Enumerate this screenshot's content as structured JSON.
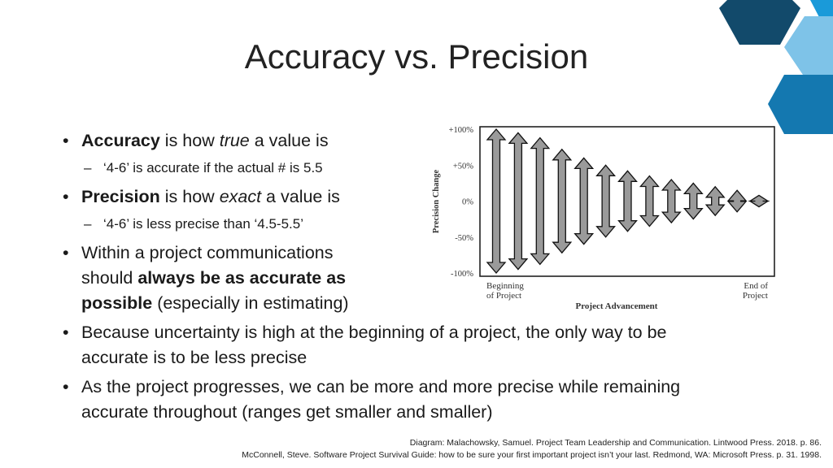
{
  "slide": {
    "title": "Accuracy vs. Precision",
    "bullets": {
      "b1": {
        "bold": "Accuracy",
        "text1": " is how ",
        "italic": "true",
        "text2": " a value is"
      },
      "s1": "‘4-6’ is accurate if the actual # is 5.5",
      "b2": {
        "bold": "Precision",
        "text1": " is how ",
        "italic": "exact",
        "text2": " a value is"
      },
      "s2": "‘4-6’ is less precise than ‘4.5-5.5’",
      "b3": {
        "line1": "Within a project communications",
        "line2a": "should ",
        "line2b": "always be as accurate as",
        "line3a": "possible",
        "line3b": " (especially in estimating)"
      },
      "b4": {
        "line1": "Because uncertainty is high at the beginning of a project, the only way to be",
        "line2": "accurate is to be less precise"
      },
      "b5": {
        "line1": "As the project progresses, we can be more and more precise while remaining",
        "line2": "accurate throughout (ranges get smaller and smaller)"
      },
      "bullet_glyph": "•",
      "dash_glyph": "–"
    },
    "credits": {
      "line1": "Diagram: Malachowsky, Samuel. Project Team Leadership and Communication. Lintwood Press. 2018. p. 86.",
      "line2": "McConnell, Steve. Software Project Survival Guide: how to be sure your first important project isn’t your last. Redmond, WA: Microsoft Press. p. 31. 1998."
    },
    "colors": {
      "deco_dark": "#124a6b",
      "deco_mid": "#1478b0",
      "deco_light": "#7ec3e8",
      "deco_bright": "#1a9ad9"
    }
  },
  "chart_data": {
    "type": "range-arrows",
    "ylabel": "Precision Change",
    "xlabel": "Project Advancement",
    "yticks": [
      "+100%",
      "+50%",
      "0%",
      "-50%",
      "-100%"
    ],
    "ytick_values": [
      100,
      50,
      0,
      -50,
      -100
    ],
    "ylim": [
      -100,
      100
    ],
    "x_start_label": [
      "Beginning",
      "of Project"
    ],
    "x_end_label": [
      "End of",
      "Project"
    ],
    "ranges": [
      {
        "low": -100,
        "high": 100
      },
      {
        "low": -95,
        "high": 95
      },
      {
        "low": -88,
        "high": 88
      },
      {
        "low": -72,
        "high": 72
      },
      {
        "low": -60,
        "high": 60
      },
      {
        "low": -50,
        "high": 50
      },
      {
        "low": -42,
        "high": 42
      },
      {
        "low": -35,
        "high": 35
      },
      {
        "low": -30,
        "high": 30
      },
      {
        "low": -25,
        "high": 25
      },
      {
        "low": -20,
        "high": 20
      },
      {
        "low": -15,
        "high": 15
      },
      {
        "low": -8,
        "high": 8
      }
    ]
  }
}
